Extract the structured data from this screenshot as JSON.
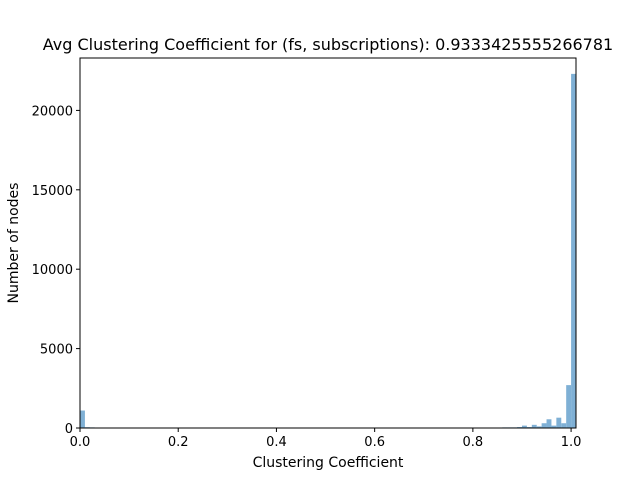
{
  "chart_data": {
    "type": "bar",
    "title": "Avg Clustering Coefficient for (fs, subscriptions): 0.9333425555266781",
    "xlabel": "Clustering Coefficient",
    "ylabel": "Number of nodes",
    "xlim": [
      0,
      1.01
    ],
    "ylim": [
      0,
      23300
    ],
    "xticks": [
      0,
      0.2,
      0.4,
      0.6,
      0.8,
      1.0
    ],
    "xtick_labels": [
      "0.0",
      "0.2",
      "0.4",
      "0.6",
      "0.8",
      "1.0"
    ],
    "yticks": [
      0,
      5000,
      10000,
      15000,
      20000
    ],
    "ytick_labels": [
      "0",
      "5000",
      "10000",
      "15000",
      "20000"
    ],
    "bin_width": 0.01,
    "bar_color": "#7fb0d5",
    "bins": [
      {
        "x0": 0.0,
        "x1": 0.01,
        "value": 1100
      },
      {
        "x0": 0.01,
        "x1": 0.02,
        "value": 50
      },
      {
        "x0": 0.02,
        "x1": 0.03,
        "value": 40
      },
      {
        "x0": 0.49,
        "x1": 0.5,
        "value": 30
      },
      {
        "x0": 0.5,
        "x1": 0.51,
        "value": 30
      },
      {
        "x0": 0.64,
        "x1": 0.65,
        "value": 25
      },
      {
        "x0": 0.82,
        "x1": 0.83,
        "value": 20
      },
      {
        "x0": 0.84,
        "x1": 0.85,
        "value": 30
      },
      {
        "x0": 0.85,
        "x1": 0.86,
        "value": 30
      },
      {
        "x0": 0.86,
        "x1": 0.87,
        "value": 40
      },
      {
        "x0": 0.87,
        "x1": 0.88,
        "value": 40
      },
      {
        "x0": 0.88,
        "x1": 0.89,
        "value": 40
      },
      {
        "x0": 0.89,
        "x1": 0.9,
        "value": 60
      },
      {
        "x0": 0.9,
        "x1": 0.91,
        "value": 150
      },
      {
        "x0": 0.91,
        "x1": 0.92,
        "value": 60
      },
      {
        "x0": 0.92,
        "x1": 0.93,
        "value": 200
      },
      {
        "x0": 0.93,
        "x1": 0.94,
        "value": 100
      },
      {
        "x0": 0.94,
        "x1": 0.95,
        "value": 300
      },
      {
        "x0": 0.95,
        "x1": 0.96,
        "value": 550
      },
      {
        "x0": 0.96,
        "x1": 0.97,
        "value": 150
      },
      {
        "x0": 0.97,
        "x1": 0.98,
        "value": 650
      },
      {
        "x0": 0.98,
        "x1": 0.99,
        "value": 300
      },
      {
        "x0": 0.99,
        "x1": 1.0,
        "value": 2700
      },
      {
        "x0": 1.0,
        "x1": 1.01,
        "value": 22300
      }
    ]
  }
}
